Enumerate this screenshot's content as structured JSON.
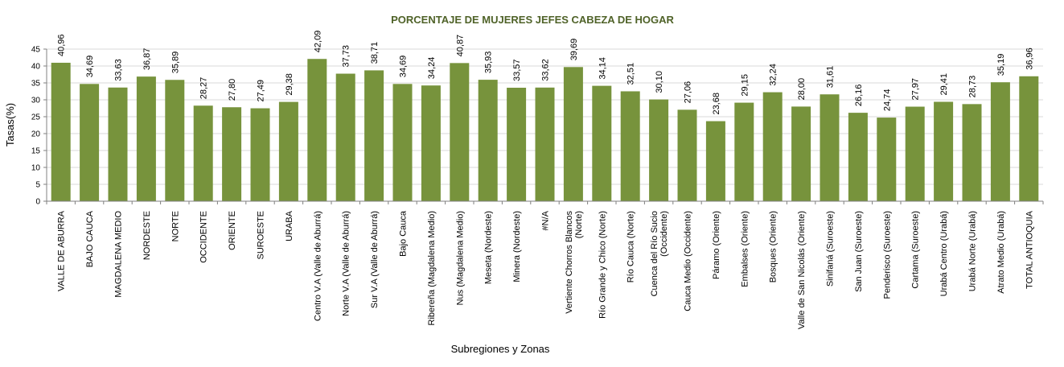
{
  "colors": {
    "bar": "#77933c",
    "title": "#4f6228",
    "grid": "#d9d9d9",
    "axis": "#808080"
  },
  "chart_data": {
    "type": "bar",
    "title": "PORCENTAJE DE MUJERES JEFES CABEZA DE HOGAR",
    "xlabel": "Subregiones y Zonas",
    "ylabel": "Tasas(%)",
    "ylim": [
      0,
      45
    ],
    "yticks": [
      0,
      5,
      10,
      15,
      20,
      25,
      30,
      35,
      40,
      45
    ],
    "grid": true,
    "legend": "none",
    "categories": [
      [
        "VALLE DE ABURRA"
      ],
      [
        "BAJO CAUCA"
      ],
      [
        "MAGDALENA MEDIO"
      ],
      [
        "NORDESTE"
      ],
      [
        "NORTE"
      ],
      [
        "OCCIDENTE"
      ],
      [
        "ORIENTE"
      ],
      [
        "SUROESTE"
      ],
      [
        "URABA"
      ],
      [
        "Centro V.A (Valle de Aburrá)"
      ],
      [
        "Norte V.A (Valle de Aburrá)"
      ],
      [
        "Sur V.A (Valle de Aburrá)"
      ],
      [
        "Bajo Cauca"
      ],
      [
        "Ribereña  (Magdalena Medio)"
      ],
      [
        "Nus  (Magdalena Medio)"
      ],
      [
        "Meseta  (Nordeste)"
      ],
      [
        "Minera  (Nordeste)"
      ],
      [
        "#N/A"
      ],
      [
        "Vertiente Chorros Blancos",
        "(Norte)"
      ],
      [
        "Río Grande y Chico  (Norte)"
      ],
      [
        "Río Cauca  (Norte)"
      ],
      [
        "Cuenca del Río Sucio",
        "(Occidente)"
      ],
      [
        "Cauca Medio  (Occidente)"
      ],
      [
        "Páramo  (Oriente)"
      ],
      [
        "Embalses  (Oriente)"
      ],
      [
        "Bosques  (Oriente)"
      ],
      [
        "Valle de San Nicolás  (Oriente)"
      ],
      [
        "Sinifaná  (Suroeste)"
      ],
      [
        "San Juan  (Suroeste)"
      ],
      [
        "Penderisco  (Suroeste)"
      ],
      [
        "Cartama  (Suroeste)"
      ],
      [
        "Urabá Centro  (Urabá)"
      ],
      [
        "Urabá Norte  (Urabá)"
      ],
      [
        "Atrato Medio  (Urabá)"
      ],
      [
        "TOTAL ANTIOQUIA"
      ]
    ],
    "values": [
      40.96,
      34.69,
      33.63,
      36.87,
      35.89,
      28.27,
      27.8,
      27.49,
      29.38,
      42.09,
      37.73,
      38.71,
      34.69,
      34.24,
      40.87,
      35.93,
      33.57,
      33.62,
      39.69,
      34.14,
      32.51,
      30.1,
      27.06,
      23.68,
      29.15,
      32.24,
      28.0,
      31.61,
      26.16,
      24.74,
      27.97,
      29.41,
      28.73,
      35.19,
      36.96
    ],
    "value_labels": [
      "40,96",
      "34,69",
      "33,63",
      "36,87",
      "35,89",
      "28,27",
      "27,80",
      "27,49",
      "29,38",
      "42,09",
      "37,73",
      "38,71",
      "34,69",
      "34,24",
      "40,87",
      "35,93",
      "33,57",
      "33,62",
      "39,69",
      "34,14",
      "32,51",
      "30,10",
      "27,06",
      "23,68",
      "29,15",
      "32,24",
      "28,00",
      "31,61",
      "26,16",
      "24,74",
      "27,97",
      "29,41",
      "28,73",
      "35,19",
      "36,96"
    ]
  }
}
